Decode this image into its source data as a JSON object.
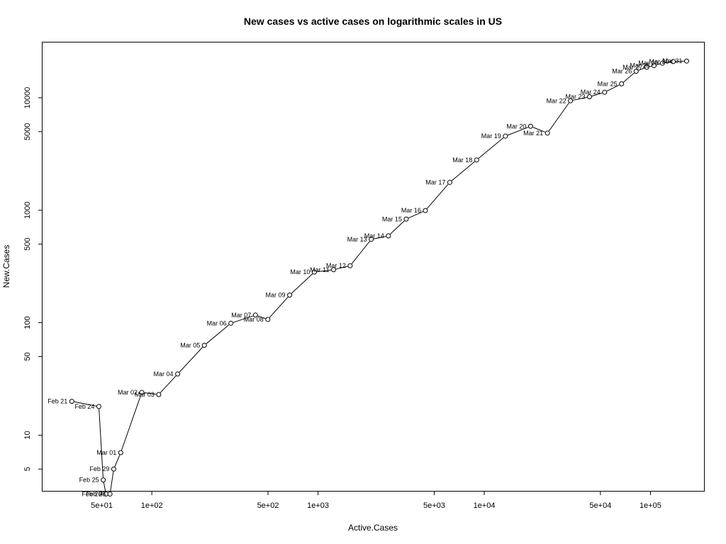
{
  "chart_data": {
    "type": "line",
    "title": "New cases vs active cases on logarithmic scales in US",
    "xlabel": "Active.Cases",
    "ylabel": "New.Cases",
    "log_x": true,
    "log_y": true,
    "xlim": [
      22,
      210000
    ],
    "ylim": [
      3.2,
      31000
    ],
    "grid": false,
    "legend": "none",
    "markers": "open circles connected by lines",
    "x_ticks": [
      {
        "value": 50,
        "label": "5e+01"
      },
      {
        "value": 100,
        "label": "1e+02"
      },
      {
        "value": 500,
        "label": "5e+02"
      },
      {
        "value": 1000,
        "label": "1e+03"
      },
      {
        "value": 5000,
        "label": "5e+03"
      },
      {
        "value": 10000,
        "label": "1e+04"
      },
      {
        "value": 50000,
        "label": "5e+04"
      },
      {
        "value": 100000,
        "label": "1e+05"
      }
    ],
    "y_ticks": [
      {
        "value": 5,
        "label": "5"
      },
      {
        "value": 10,
        "label": "10"
      },
      {
        "value": 50,
        "label": "50"
      },
      {
        "value": 100,
        "label": "100"
      },
      {
        "value": 500,
        "label": "500"
      },
      {
        "value": 1000,
        "label": "1000"
      },
      {
        "value": 5000,
        "label": "5000"
      },
      {
        "value": 10000,
        "label": "10000"
      }
    ],
    "points": [
      {
        "label": "Feb 21",
        "x": 33,
        "y": 20
      },
      {
        "label": "Feb 24",
        "x": 48,
        "y": 18
      },
      {
        "label": "Feb 25",
        "x": 51,
        "y": 4
      },
      {
        "label": "Feb 26",
        "x": 53,
        "y": 3
      },
      {
        "label": "Feb 28",
        "x": 56,
        "y": 3
      },
      {
        "label": "Feb 29",
        "x": 59,
        "y": 5
      },
      {
        "label": "Mar 01",
        "x": 65,
        "y": 7
      },
      {
        "label": "Mar 02",
        "x": 87,
        "y": 24
      },
      {
        "label": "Mar 03",
        "x": 110,
        "y": 23
      },
      {
        "label": "Mar 04",
        "x": 143,
        "y": 35
      },
      {
        "label": "Mar 05",
        "x": 207,
        "y": 63
      },
      {
        "label": "Mar 06",
        "x": 299,
        "y": 99
      },
      {
        "label": "Mar 07",
        "x": 420,
        "y": 117
      },
      {
        "label": "Mar 08",
        "x": 499,
        "y": 107
      },
      {
        "label": "Mar 09",
        "x": 675,
        "y": 176
      },
      {
        "label": "Mar 10",
        "x": 950,
        "y": 282
      },
      {
        "label": "Mar 11",
        "x": 1240,
        "y": 296
      },
      {
        "label": "Mar 12",
        "x": 1560,
        "y": 321
      },
      {
        "label": "Mar 13",
        "x": 2090,
        "y": 551
      },
      {
        "label": "Mar 14",
        "x": 2650,
        "y": 592
      },
      {
        "label": "Mar 15",
        "x": 3390,
        "y": 835
      },
      {
        "label": "Mar 16",
        "x": 4420,
        "y": 994
      },
      {
        "label": "Mar 17",
        "x": 6200,
        "y": 1770
      },
      {
        "label": "Mar 18",
        "x": 9000,
        "y": 2800
      },
      {
        "label": "Mar 19",
        "x": 13400,
        "y": 4560
      },
      {
        "label": "Mar 20",
        "x": 19000,
        "y": 5580
      },
      {
        "label": "Mar 21",
        "x": 24000,
        "y": 4850
      },
      {
        "label": "Mar 22",
        "x": 33000,
        "y": 9400
      },
      {
        "label": "Mar 23",
        "x": 43000,
        "y": 10200
      },
      {
        "label": "Mar 24",
        "x": 53000,
        "y": 11200
      },
      {
        "label": "Mar 25",
        "x": 67000,
        "y": 13300
      },
      {
        "label": "Mar 26",
        "x": 82000,
        "y": 17200
      },
      {
        "label": "Mar 27",
        "x": 95000,
        "y": 18700
      },
      {
        "label": "Mar 28",
        "x": 105000,
        "y": 19300
      },
      {
        "label": "Mar 29",
        "x": 118000,
        "y": 20300
      },
      {
        "label": "Mar 30",
        "x": 137000,
        "y": 21000
      },
      {
        "label": "Mar 31",
        "x": 165000,
        "y": 21200
      }
    ]
  }
}
